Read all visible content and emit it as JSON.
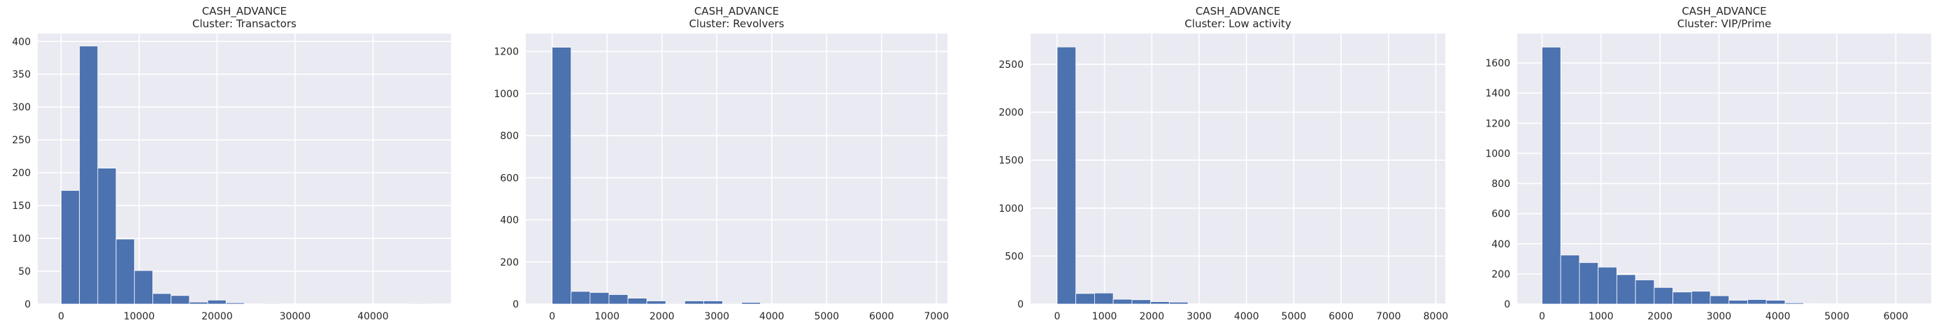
{
  "figure": {
    "background": "#ffffff",
    "axes_facecolor": "#eaeaf2",
    "grid_color": "#ffffff",
    "bar_color": "#4c72b0",
    "text_color": "#262626"
  },
  "chart_data": [
    {
      "type": "bar",
      "title": "CASH_ADVANCE",
      "subtitle": "Cluster: Transactors",
      "grid": true,
      "bin_edges": [
        0,
        2350,
        4700,
        7050,
        9400,
        11750,
        14100,
        16450,
        18800,
        21150,
        23500,
        25850,
        28200,
        30550,
        32900,
        35250,
        37600,
        39950,
        42300,
        44650,
        47000
      ],
      "values": [
        173,
        393,
        207,
        99,
        51,
        16,
        13,
        3,
        6,
        2,
        0,
        1,
        0,
        0,
        0,
        0,
        0,
        0,
        0,
        1
      ],
      "xlim": [
        -3000,
        50000
      ],
      "ylim": [
        0,
        412
      ],
      "xticks": [
        0,
        10000,
        20000,
        30000,
        40000
      ],
      "yticks": [
        0,
        50,
        100,
        150,
        200,
        250,
        300,
        350,
        400
      ]
    },
    {
      "type": "bar",
      "title": "CASH_ADVANCE",
      "subtitle": "Cluster: Revolvers",
      "grid": true,
      "bin_edges": [
        0,
        345,
        690,
        1035,
        1380,
        1725,
        2070,
        2415,
        2760,
        3105,
        3450,
        3795,
        4140,
        4485,
        4830,
        5175,
        5520,
        5865,
        6210,
        6555,
        6900
      ],
      "values": [
        1220,
        60,
        55,
        45,
        28,
        15,
        3,
        15,
        15,
        3,
        8,
        2,
        0,
        0,
        0,
        0,
        0,
        0,
        0,
        1
      ],
      "xlim": [
        -480,
        7200
      ],
      "ylim": [
        0,
        1285
      ],
      "xticks": [
        0,
        1000,
        2000,
        3000,
        4000,
        5000,
        6000,
        7000
      ],
      "yticks": [
        0,
        200,
        400,
        600,
        800,
        1000,
        1200
      ]
    },
    {
      "type": "bar",
      "title": "CASH_ADVANCE",
      "subtitle": "Cluster: Low activity",
      "grid": true,
      "bin_edges": [
        0,
        395,
        790,
        1185,
        1580,
        1975,
        2370,
        2765,
        3160,
        3555,
        3950,
        4345,
        4740,
        5135,
        5530,
        5925,
        6320,
        6715,
        7110,
        7505,
        7900
      ],
      "values": [
        2680,
        110,
        115,
        50,
        45,
        25,
        20,
        3,
        2,
        1,
        1,
        0,
        0,
        0,
        0,
        0,
        0,
        0,
        0,
        1
      ],
      "xlim": [
        -560,
        8200
      ],
      "ylim": [
        0,
        2820
      ],
      "xticks": [
        0,
        1000,
        2000,
        3000,
        4000,
        5000,
        6000,
        7000,
        8000
      ],
      "yticks": [
        0,
        500,
        1000,
        1500,
        2000,
        2500
      ]
    },
    {
      "type": "bar",
      "title": "CASH_ADVANCE",
      "subtitle": "Cluster: VIP/Prime",
      "grid": true,
      "bin_edges": [
        0,
        317,
        634,
        951,
        1268,
        1585,
        1902,
        2219,
        2536,
        2853,
        3170,
        3487,
        3804,
        4121,
        4438,
        4755,
        5072,
        5389,
        5706,
        6023,
        6340
      ],
      "values": [
        1705,
        325,
        275,
        245,
        195,
        160,
        110,
        80,
        85,
        55,
        25,
        30,
        25,
        8,
        3,
        2,
        1,
        1,
        0,
        1
      ],
      "xlim": [
        -420,
        6600
      ],
      "ylim": [
        0,
        1795
      ],
      "xticks": [
        0,
        1000,
        2000,
        3000,
        4000,
        5000,
        6000
      ],
      "yticks": [
        0,
        200,
        400,
        600,
        800,
        1000,
        1200,
        1400,
        1600
      ]
    }
  ]
}
